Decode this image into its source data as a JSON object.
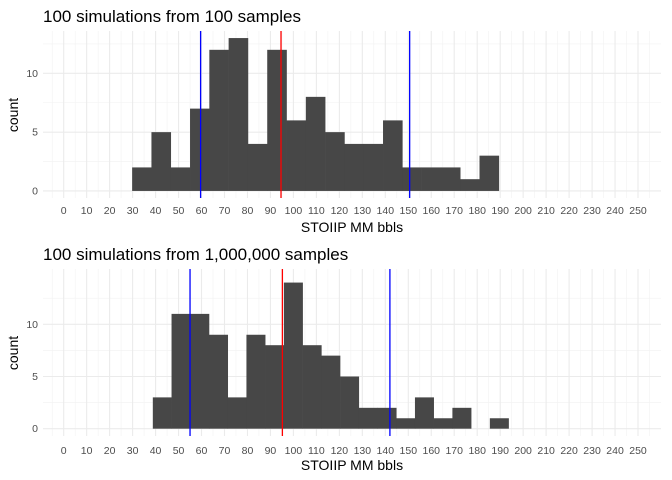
{
  "chart_data": [
    {
      "type": "bar",
      "title": "100 simulations from 100 samples",
      "xlabel": "STOIIP MM bbls",
      "ylabel": "count",
      "xlim": [
        -9,
        260
      ],
      "ylim": [
        -0.6,
        13.6
      ],
      "x_ticks": [
        0,
        10,
        20,
        30,
        40,
        50,
        60,
        70,
        80,
        90,
        100,
        110,
        120,
        130,
        140,
        150,
        160,
        170,
        180,
        190,
        200,
        210,
        220,
        230,
        240,
        250
      ],
      "y_ticks": [
        0,
        5,
        10
      ],
      "bin_width": 8.4,
      "bins": [
        {
          "x0": 29.8,
          "count": 2
        },
        {
          "x0": 38.2,
          "count": 5
        },
        {
          "x0": 46.6,
          "count": 2
        },
        {
          "x0": 55.0,
          "count": 7
        },
        {
          "x0": 63.4,
          "count": 12
        },
        {
          "x0": 71.8,
          "count": 13
        },
        {
          "x0": 80.2,
          "count": 4
        },
        {
          "x0": 88.6,
          "count": 12
        },
        {
          "x0": 97.0,
          "count": 6
        },
        {
          "x0": 105.4,
          "count": 8
        },
        {
          "x0": 113.8,
          "count": 5
        },
        {
          "x0": 122.2,
          "count": 4
        },
        {
          "x0": 130.6,
          "count": 4
        },
        {
          "x0": 139.0,
          "count": 6
        },
        {
          "x0": 147.4,
          "count": 2
        },
        {
          "x0": 155.8,
          "count": 2
        },
        {
          "x0": 164.2,
          "count": 2
        },
        {
          "x0": 172.6,
          "count": 1
        },
        {
          "x0": 181.0,
          "count": 3
        }
      ],
      "vlines": [
        {
          "x": 59.6,
          "color": "#0000ff"
        },
        {
          "x": 94.6,
          "color": "#ff0000"
        },
        {
          "x": 150.6,
          "color": "#0000ff"
        }
      ],
      "bar_color": "#474747",
      "grid": true
    },
    {
      "type": "bar",
      "title": "100 simulations from 1,000,000 samples",
      "xlabel": "STOIIP MM bbls",
      "ylabel": "count",
      "xlim": [
        -9,
        260
      ],
      "ylim": [
        -0.7,
        15.3
      ],
      "x_ticks": [
        0,
        10,
        20,
        30,
        40,
        50,
        60,
        70,
        80,
        90,
        100,
        110,
        120,
        130,
        140,
        150,
        160,
        170,
        180,
        190,
        200,
        210,
        220,
        230,
        240,
        250
      ],
      "y_ticks": [
        0,
        5,
        10
      ],
      "bin_width": 8.15,
      "bins": [
        {
          "x0": 38.8,
          "count": 3
        },
        {
          "x0": 46.95,
          "count": 11
        },
        {
          "x0": 55.1,
          "count": 11
        },
        {
          "x0": 63.25,
          "count": 9
        },
        {
          "x0": 71.4,
          "count": 3
        },
        {
          "x0": 79.55,
          "count": 9
        },
        {
          "x0": 87.7,
          "count": 8
        },
        {
          "x0": 95.85,
          "count": 14
        },
        {
          "x0": 104.0,
          "count": 8
        },
        {
          "x0": 112.15,
          "count": 7
        },
        {
          "x0": 120.3,
          "count": 5
        },
        {
          "x0": 128.45,
          "count": 2
        },
        {
          "x0": 136.6,
          "count": 2
        },
        {
          "x0": 144.75,
          "count": 1
        },
        {
          "x0": 152.9,
          "count": 3
        },
        {
          "x0": 161.05,
          "count": 1
        },
        {
          "x0": 169.2,
          "count": 2
        },
        {
          "x0": 177.35,
          "count": 0
        },
        {
          "x0": 185.5,
          "count": 1
        }
      ],
      "vlines": [
        {
          "x": 55.0,
          "color": "#0000ff"
        },
        {
          "x": 95.2,
          "color": "#ff0000"
        },
        {
          "x": 142.0,
          "color": "#0000ff"
        }
      ],
      "bar_color": "#474747",
      "grid": true
    }
  ]
}
